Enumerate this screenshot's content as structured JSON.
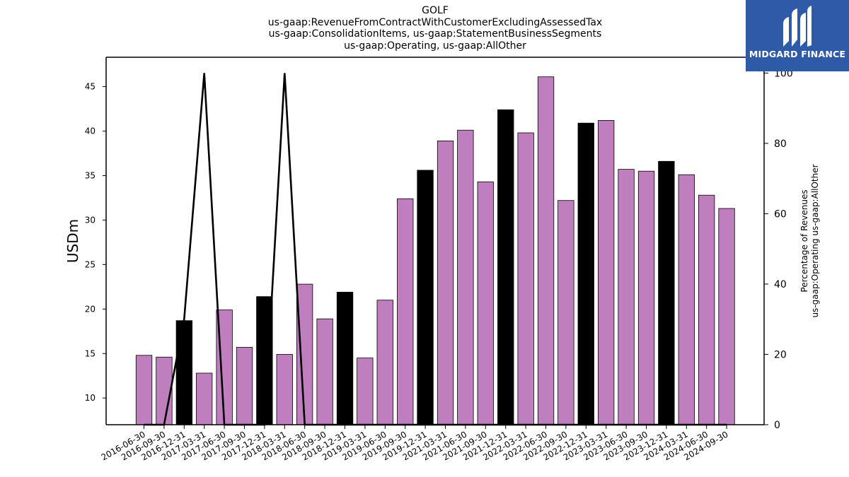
{
  "title_lines": [
    "GOLF",
    "us-gaap:RevenueFromContractWithCustomerExcludingAssessedTax",
    "us-gaap:ConsolidationItems, us-gaap:StatementBusinessSegments",
    "us-gaap:Operating, us-gaap:AllOther"
  ],
  "logo": {
    "text": "MIDGARD FINANCE",
    "background": "#2f5aa8"
  },
  "colors": {
    "bar_default": "#bf7fbf",
    "bar_highlight": "#000000",
    "line": "#000000"
  },
  "chart_data": {
    "type": "bar",
    "title": "GOLF us-gaap:RevenueFromContractWithCustomerExcludingAssessedTax us-gaap:ConsolidationItems, us-gaap:StatementBusinessSegments us-gaap:Operating, us-gaap:AllOther",
    "ylabel": "USDm",
    "y2label_lines": [
      "Percentage of Revenues",
      "us-gaap:Operating us-gaap:AllOther"
    ],
    "ylim": [
      7,
      48.3
    ],
    "y2lim": [
      0,
      104.5
    ],
    "yticks": [
      10,
      15,
      20,
      25,
      30,
      35,
      40,
      45
    ],
    "y2ticks": [
      0,
      20,
      40,
      60,
      80,
      100
    ],
    "categories": [
      "2016-06-30",
      "2016-09-30",
      "2016-12-31",
      "2017-03-31",
      "2017-06-30",
      "2017-09-30",
      "2017-12-31",
      "2018-03-31",
      "2018-06-30",
      "2018-09-30",
      "2018-12-31",
      "2019-03-31",
      "2019-06-30",
      "2019-09-30",
      "2019-12-31",
      "2021-03-31",
      "2021-06-30",
      "2021-09-30",
      "2021-12-31",
      "2022-03-31",
      "2022-06-30",
      "2022-09-30",
      "2022-12-31",
      "2023-03-31",
      "2023-06-30",
      "2023-09-30",
      "2023-12-31",
      "2024-03-31",
      "2024-06-30",
      "2024-09-30"
    ],
    "series": [
      {
        "type": "bar",
        "values": [
          14.8,
          14.6,
          18.7,
          12.8,
          19.9,
          15.7,
          21.4,
          14.9,
          22.8,
          18.9,
          21.9,
          14.5,
          21.0,
          32.4,
          35.6,
          38.9,
          40.1,
          34.3,
          42.4,
          39.8,
          46.1,
          32.2,
          40.9,
          41.2,
          35.7,
          35.5,
          36.6,
          35.1,
          32.8,
          31.3
        ],
        "highlight": [
          false,
          false,
          true,
          false,
          false,
          false,
          true,
          false,
          false,
          false,
          true,
          false,
          false,
          false,
          true,
          false,
          false,
          false,
          true,
          false,
          false,
          false,
          true,
          false,
          false,
          false,
          true,
          false,
          false,
          false
        ]
      },
      {
        "type": "line",
        "axis": "right",
        "values": [
          0,
          0,
          30,
          100,
          0,
          0,
          0,
          100,
          0,
          0,
          0,
          0,
          0,
          0,
          0,
          0,
          0,
          0,
          0,
          0,
          0,
          0,
          0,
          0,
          0,
          0,
          0,
          0,
          0,
          0
        ]
      }
    ],
    "grid": false,
    "legend": "none"
  }
}
